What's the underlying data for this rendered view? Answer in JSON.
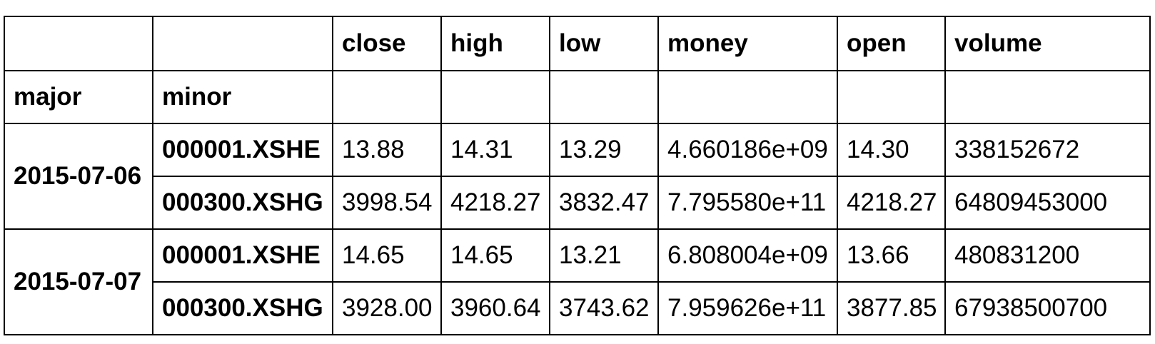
{
  "table": {
    "columns": [
      "close",
      "high",
      "low",
      "money",
      "open",
      "volume"
    ],
    "index_names": [
      "major",
      "minor"
    ],
    "groups": [
      {
        "major": "2015-07-06",
        "rows": [
          {
            "minor": "000001.XSHE",
            "values": [
              "13.88",
              "14.31",
              "13.29",
              "4.660186e+09",
              "14.30",
              "338152672"
            ]
          },
          {
            "minor": "000300.XSHG",
            "values": [
              "3998.54",
              "4218.27",
              "3832.47",
              "7.795580e+11",
              "4218.27",
              "64809453000"
            ]
          }
        ]
      },
      {
        "major": "2015-07-07",
        "rows": [
          {
            "minor": "000001.XSHE",
            "values": [
              "14.65",
              "14.65",
              "13.21",
              "6.808004e+09",
              "13.66",
              "480831200"
            ]
          },
          {
            "minor": "000300.XSHG",
            "values": [
              "3928.00",
              "3960.64",
              "3743.62",
              "7.959626e+11",
              "3877.85",
              "67938500700"
            ]
          }
        ]
      }
    ]
  }
}
